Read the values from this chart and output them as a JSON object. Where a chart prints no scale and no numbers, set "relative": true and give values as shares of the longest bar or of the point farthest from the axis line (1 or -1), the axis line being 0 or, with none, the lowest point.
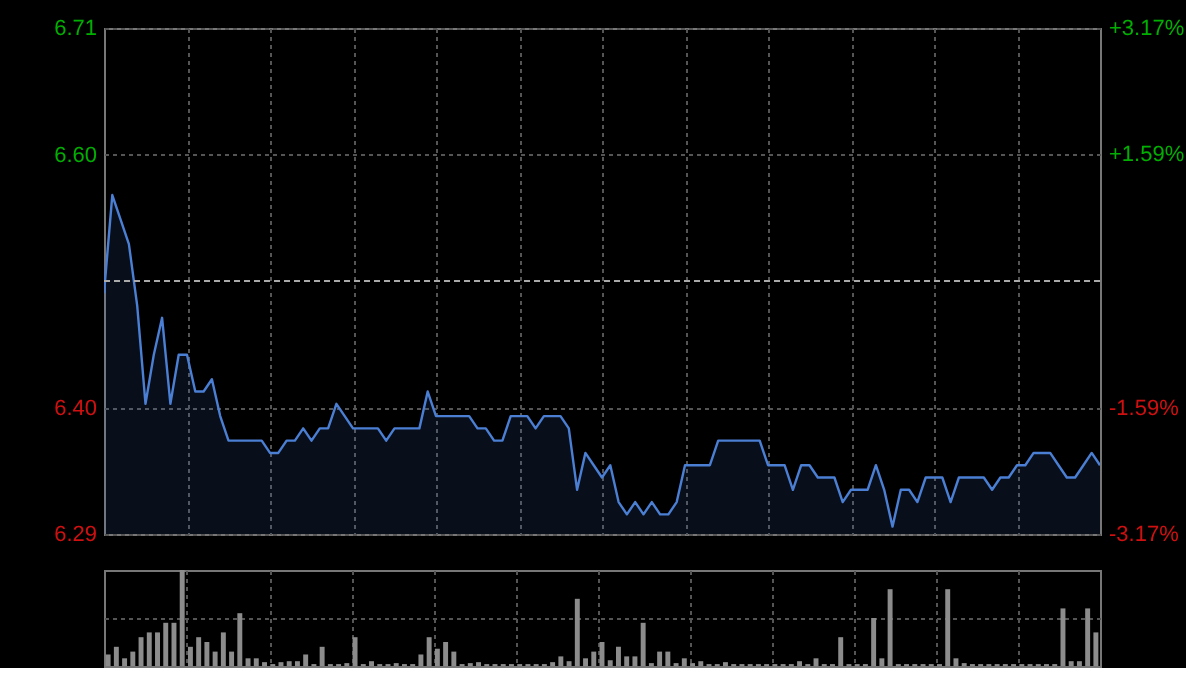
{
  "chart_data": [
    {
      "type": "area",
      "categories": [
        null,
        null,
        null,
        null,
        null,
        null,
        null,
        null,
        null,
        null,
        null,
        null,
        null,
        null,
        null,
        null,
        null,
        null,
        null,
        null,
        null,
        null,
        null,
        null,
        null,
        null,
        null,
        null,
        null,
        null,
        null,
        null,
        null,
        null,
        null,
        null,
        null,
        null,
        null,
        null,
        null,
        null,
        null,
        null,
        null,
        null,
        null,
        null,
        null,
        null,
        null,
        null,
        null,
        null,
        null,
        null,
        null,
        null,
        null,
        null,
        null,
        null,
        null,
        null,
        null,
        null,
        null,
        null,
        null,
        null,
        null,
        null,
        null,
        null,
        null,
        null,
        null,
        null,
        null,
        null,
        null,
        null,
        null,
        null,
        null,
        null,
        null,
        null,
        null,
        null,
        null,
        null,
        null,
        null,
        null,
        null,
        null,
        null,
        null,
        null,
        null,
        null,
        null,
        null,
        null,
        null,
        null,
        null,
        null,
        null,
        null,
        null,
        null,
        null,
        null,
        null,
        null,
        null,
        null,
        null,
        null
      ],
      "series": [
        {
          "color": "#4a7fd4",
          "axis": "y",
          "values": [
            6.49,
            6.57,
            6.55,
            6.53,
            6.48,
            6.4,
            6.44,
            6.47,
            6.4,
            6.44,
            6.44,
            6.41,
            6.41,
            6.42,
            6.39,
            6.37,
            6.37,
            6.37,
            6.37,
            6.37,
            6.36,
            6.36,
            6.37,
            6.37,
            6.38,
            6.37,
            6.38,
            6.38,
            6.4,
            6.39,
            6.38,
            6.38,
            6.38,
            6.38,
            6.37,
            6.38,
            6.38,
            6.38,
            6.38,
            6.41,
            6.39,
            6.39,
            6.39,
            6.39,
            6.39,
            6.38,
            6.38,
            6.37,
            6.37,
            6.39,
            6.39,
            6.39,
            6.38,
            6.39,
            6.39,
            6.39,
            6.38,
            6.33,
            6.36,
            6.35,
            6.34,
            6.35,
            6.32,
            6.31,
            6.32,
            6.31,
            6.32,
            6.31,
            6.31,
            6.32,
            6.35,
            6.35,
            6.35,
            6.35,
            6.37,
            6.37,
            6.37,
            6.37,
            6.37,
            6.37,
            6.35,
            6.35,
            6.35,
            6.33,
            6.35,
            6.35,
            6.34,
            6.34,
            6.34,
            6.32,
            6.33,
            6.33,
            6.33,
            6.35,
            6.33,
            6.3,
            6.33,
            6.33,
            6.32,
            6.34,
            6.34,
            6.34,
            6.32,
            6.34,
            6.34,
            6.34,
            6.34,
            6.33,
            6.34,
            6.34,
            6.35,
            6.35,
            6.36,
            6.36,
            6.36,
            6.35,
            6.34,
            6.34,
            6.35,
            6.36,
            6.35
          ]
        }
      ],
      "ylim": [
        6.294,
        6.706
      ],
      "yticks": [
        {
          "value": 6.294,
          "label": "6.29"
        },
        {
          "value": 6.397,
          "label": "6.40"
        },
        {
          "value": 6.603,
          "label": "6.60"
        },
        {
          "value": 6.706,
          "label": "6.71"
        }
      ],
      "y2lim": [
        -3.17,
        3.17
      ],
      "y2ticks": [
        {
          "value": -3.17,
          "label": "-3.17%"
        },
        {
          "value": -1.59,
          "label": "-1.59%"
        },
        {
          "value": 1.59,
          "label": "+1.59%"
        },
        {
          "value": 3.17,
          "label": "+3.17%"
        }
      ],
      "ref_lines": [
        {
          "axis": "y",
          "value": 6.5,
          "line_style": "dashed",
          "color": "#aaaaaa"
        }
      ],
      "grid": true,
      "tick_labels": "y",
      "legend": false
    },
    {
      "type": "bar",
      "relative": true,
      "categories": [
        null,
        null,
        null,
        null,
        null,
        null,
        null,
        null,
        null,
        null,
        null,
        null,
        null,
        null,
        null,
        null,
        null,
        null,
        null,
        null,
        null,
        null,
        null,
        null,
        null,
        null,
        null,
        null,
        null,
        null,
        null,
        null,
        null,
        null,
        null,
        null,
        null,
        null,
        null,
        null,
        null,
        null,
        null,
        null,
        null,
        null,
        null,
        null,
        null,
        null,
        null,
        null,
        null,
        null,
        null,
        null,
        null,
        null,
        null,
        null,
        null,
        null,
        null,
        null,
        null,
        null,
        null,
        null,
        null,
        null,
        null,
        null,
        null,
        null,
        null,
        null,
        null,
        null,
        null,
        null,
        null,
        null,
        null,
        null,
        null,
        null,
        null,
        null,
        null,
        null,
        null,
        null,
        null,
        null,
        null,
        null,
        null,
        null,
        null,
        null,
        null,
        null,
        null,
        null,
        null,
        null,
        null,
        null,
        null,
        null,
        null,
        null,
        null,
        null,
        null,
        null,
        null,
        null,
        null,
        null,
        null
      ],
      "values": [
        0.12,
        0.2,
        0.08,
        0.15,
        0.3,
        0.35,
        0.35,
        0.45,
        0.45,
        1.0,
        0.2,
        0.3,
        0.25,
        0.15,
        0.35,
        0.15,
        0.55,
        0.08,
        0.08,
        0.04,
        0.02,
        0.04,
        0.05,
        0.05,
        0.12,
        0.02,
        0.2,
        0.02,
        0.02,
        0.03,
        0.3,
        0.02,
        0.05,
        0.02,
        0.02,
        0.03,
        0.02,
        0.02,
        0.12,
        0.3,
        0.18,
        0.25,
        0.15,
        0.02,
        0.03,
        0.04,
        0.02,
        0.02,
        0.02,
        0.02,
        0.02,
        0.02,
        0.02,
        0.02,
        0.04,
        0.1,
        0.05,
        0.7,
        0.08,
        0.15,
        0.25,
        0.06,
        0.2,
        0.1,
        0.1,
        0.45,
        0.03,
        0.15,
        0.15,
        0.03,
        0.08,
        0.03,
        0.05,
        0.02,
        0.02,
        0.04,
        0.02,
        0.02,
        0.02,
        0.02,
        0.02,
        0.02,
        0.02,
        0.02,
        0.05,
        0.02,
        0.08,
        0.02,
        0.02,
        0.3,
        0.02,
        0.02,
        0.02,
        0.5,
        0.08,
        0.8,
        0.02,
        0.02,
        0.02,
        0.02,
        0.02,
        0.02,
        0.8,
        0.08,
        0.03,
        0.02,
        0.02,
        0.02,
        0.02,
        0.02,
        0.02,
        0.02,
        0.02,
        0.02,
        0.02,
        0.02,
        0.6,
        0.05,
        0.05,
        0.6,
        0.35
      ],
      "color": "#8c8c8c",
      "grid": true,
      "tick_labels": false,
      "legend": false
    }
  ]
}
